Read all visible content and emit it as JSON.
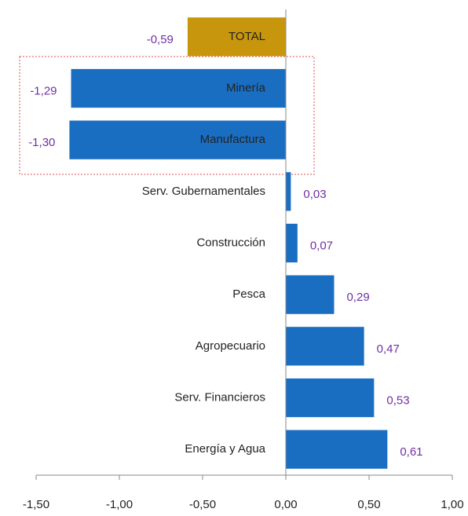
{
  "chart_data": {
    "type": "hbar",
    "categories": [
      "TOTAL",
      "Minería",
      "Manufactura",
      "Serv. Gubernamentales",
      "Construcción",
      "Pesca",
      "Agropecuario",
      "Serv. Financieros",
      "Energía y Agua"
    ],
    "values": [
      -0.59,
      -1.29,
      -1.3,
      0.03,
      0.07,
      0.29,
      0.47,
      0.53,
      0.61
    ],
    "value_labels": [
      "-0,59",
      "-1,29",
      "-1,30",
      "0,03",
      "0,07",
      "0,29",
      "0,47",
      "0,53",
      "0,61"
    ],
    "colors": [
      "#c8960c",
      "#1a6ec2",
      "#1a6ec2",
      "#1a6ec2",
      "#1a6ec2",
      "#1a6ec2",
      "#1a6ec2",
      "#1a6ec2",
      "#1a6ec2"
    ],
    "xlim": [
      -1.5,
      1.0
    ],
    "xticks": [
      {
        "value": -1.5,
        "label": "-1,50"
      },
      {
        "value": -1.0,
        "label": "-1,00"
      },
      {
        "value": -0.5,
        "label": "-0,50"
      },
      {
        "value": 0,
        "label": "0,00"
      },
      {
        "value": 0.5,
        "label": "0,50"
      },
      {
        "value": 1.0,
        "label": "1,00"
      }
    ]
  }
}
